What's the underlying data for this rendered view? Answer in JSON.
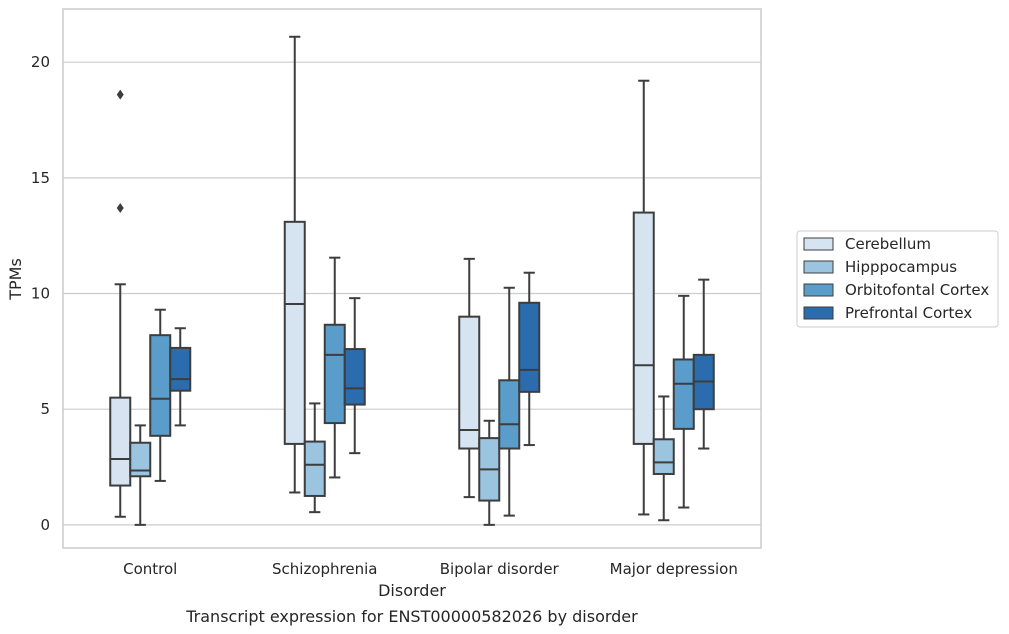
{
  "chart_data": {
    "type": "box",
    "caption": "Transcript expression for ENST00000582026 by disorder",
    "xlabel": "Disorder",
    "ylabel": "TPMs",
    "ylim": [
      -1,
      22.3
    ],
    "yticks": [
      0,
      5,
      10,
      15,
      20
    ],
    "grid": "horizontal",
    "legend_position": "right",
    "categories": [
      "Control",
      "Schizophrenia",
      "Bipolar disorder",
      "Major depression"
    ],
    "series": [
      {
        "name": "Cerebellum",
        "color": "#d6e4f2",
        "boxes": [
          {
            "whislo": 0.35,
            "q1": 1.7,
            "med": 2.85,
            "q3": 5.5,
            "whishi": 10.4,
            "fliers": [
              13.7,
              18.6
            ]
          },
          {
            "whislo": 1.4,
            "q1": 3.5,
            "med": 9.55,
            "q3": 13.1,
            "whishi": 21.1,
            "fliers": []
          },
          {
            "whislo": 1.2,
            "q1": 3.3,
            "med": 4.1,
            "q3": 9.0,
            "whishi": 11.5,
            "fliers": []
          },
          {
            "whislo": 0.45,
            "q1": 3.5,
            "med": 6.9,
            "q3": 13.5,
            "whishi": 19.2,
            "fliers": []
          }
        ]
      },
      {
        "name": "Hipppocampus",
        "color": "#9ac4df",
        "boxes": [
          {
            "whislo": 0.0,
            "q1": 2.1,
            "med": 2.35,
            "q3": 3.55,
            "whishi": 4.3,
            "fliers": []
          },
          {
            "whislo": 0.55,
            "q1": 1.25,
            "med": 2.6,
            "q3": 3.6,
            "whishi": 5.25,
            "fliers": []
          },
          {
            "whislo": 0.0,
            "q1": 1.05,
            "med": 2.4,
            "q3": 3.75,
            "whishi": 4.5,
            "fliers": []
          },
          {
            "whislo": 0.2,
            "q1": 2.2,
            "med": 2.7,
            "q3": 3.7,
            "whishi": 5.55,
            "fliers": []
          }
        ]
      },
      {
        "name": "Orbitofontal Cortex",
        "color": "#5a9dcb",
        "boxes": [
          {
            "whislo": 1.9,
            "q1": 3.85,
            "med": 5.45,
            "q3": 8.2,
            "whishi": 9.3,
            "fliers": []
          },
          {
            "whislo": 2.05,
            "q1": 4.4,
            "med": 7.35,
            "q3": 8.65,
            "whishi": 11.55,
            "fliers": []
          },
          {
            "whislo": 0.4,
            "q1": 3.3,
            "med": 4.35,
            "q3": 6.25,
            "whishi": 10.25,
            "fliers": []
          },
          {
            "whislo": 0.75,
            "q1": 4.15,
            "med": 6.1,
            "q3": 7.15,
            "whishi": 9.9,
            "fliers": []
          }
        ]
      },
      {
        "name": "Prefrontal Cortex",
        "color": "#2b6cae",
        "boxes": [
          {
            "whislo": 4.3,
            "q1": 5.8,
            "med": 6.3,
            "q3": 7.65,
            "whishi": 8.5,
            "fliers": []
          },
          {
            "whislo": 3.1,
            "q1": 5.2,
            "med": 5.9,
            "q3": 7.6,
            "whishi": 9.8,
            "fliers": []
          },
          {
            "whislo": 3.45,
            "q1": 5.75,
            "med": 6.7,
            "q3": 9.6,
            "whishi": 10.9,
            "fliers": []
          },
          {
            "whislo": 3.3,
            "q1": 5.0,
            "med": 6.2,
            "q3": 7.35,
            "whishi": 10.6,
            "fliers": []
          }
        ]
      }
    ]
  }
}
